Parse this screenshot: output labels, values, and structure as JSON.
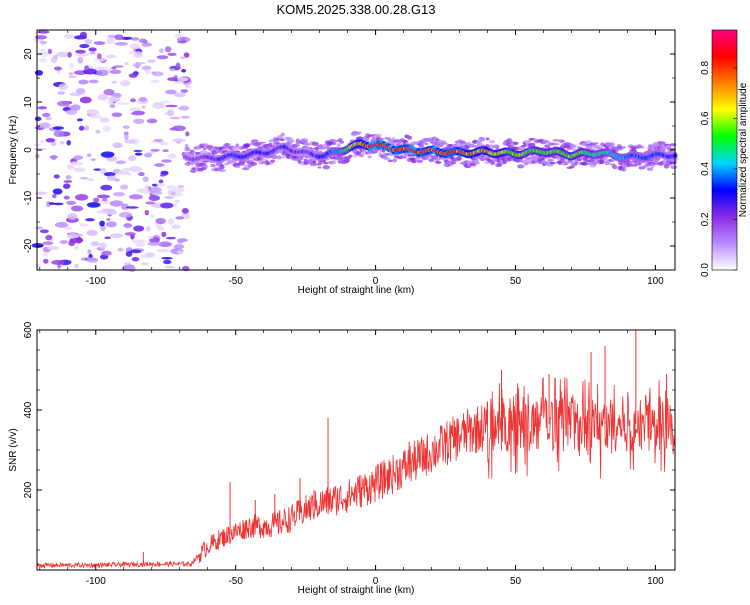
{
  "chart_data": [
    {
      "type": "heatmap",
      "title": "KOM5.2025.338.00.28.G13",
      "xlabel": "Height of straight line (km)",
      "ylabel": "Frequency (Hz)",
      "xlim": [
        -121,
        107
      ],
      "ylim": [
        -25,
        25
      ],
      "xticks": [
        -100,
        -50,
        0,
        50,
        100
      ],
      "xtick_labels": [
        "-100",
        "-50",
        "0",
        "50",
        "100"
      ],
      "yticks": [
        -20,
        -10,
        0,
        10,
        20
      ],
      "ytick_labels": [
        "-20",
        "-10",
        "0",
        "10",
        "20"
      ],
      "colorbar": {
        "label": "Normalized spectral amplitude",
        "range": [
          0,
          0.95
        ],
        "ticks": [
          0.0,
          0.2,
          0.4,
          0.6,
          0.8
        ],
        "tick_labels": [
          "0.0",
          "0.2",
          "0.4",
          "0.6",
          "0.8"
        ],
        "colors": [
          "#ffffff",
          "#b98cff",
          "#8a2be2",
          "#0000ff",
          "#00d5ff",
          "#00ff00",
          "#ffff00",
          "#ff8000",
          "#ff0000",
          "#ff007f"
        ]
      },
      "noise_region_x": [
        -121,
        -67
      ],
      "ridge": {
        "x": [
          -68,
          -60,
          -50,
          -40,
          -32,
          -25,
          -18,
          -10,
          -5,
          0,
          10,
          20,
          30,
          40,
          50,
          60,
          70,
          80,
          90,
          100,
          107
        ],
        "y": [
          -1.5,
          -1.8,
          -1.3,
          -0.6,
          0.5,
          -0.7,
          -1.2,
          0.4,
          1.2,
          1.0,
          0.0,
          -0.3,
          -0.6,
          -0.4,
          -0.8,
          -0.2,
          -1.0,
          -0.6,
          -1.5,
          -1.2,
          -1.0
        ],
        "peak_amplitude": [
          0.2,
          0.25,
          0.35,
          0.3,
          0.3,
          0.25,
          0.35,
          0.55,
          0.8,
          0.95,
          0.85,
          0.9,
          0.8,
          0.75,
          0.6,
          0.55,
          0.6,
          0.5,
          0.4,
          0.35,
          0.3
        ]
      }
    },
    {
      "type": "line",
      "xlabel": "Height of straight line (km)",
      "ylabel": "SNR (v/v)",
      "xlim": [
        -121,
        107
      ],
      "ylim": [
        0,
        600
      ],
      "xticks": [
        -100,
        -50,
        0,
        50,
        100
      ],
      "xtick_labels": [
        "-100",
        "-50",
        "0",
        "50",
        "100"
      ],
      "yticks": [
        200,
        400,
        600
      ],
      "ytick_labels": [
        "200",
        "400",
        "600"
      ],
      "color": "#ee3333",
      "series": [
        {
          "name": "SNR",
          "x": [
            -121,
            -100,
            -80,
            -66,
            -60,
            -55,
            -50,
            -45,
            -40,
            -35,
            -30,
            -25,
            -20,
            -15,
            -10,
            -5,
            0,
            5,
            10,
            15,
            20,
            25,
            30,
            35,
            40,
            45,
            50,
            55,
            60,
            65,
            70,
            75,
            80,
            85,
            90,
            95,
            100,
            107
          ],
          "y": [
            12,
            12,
            15,
            15,
            60,
            80,
            95,
            110,
            110,
            115,
            130,
            150,
            165,
            175,
            185,
            200,
            215,
            235,
            255,
            275,
            295,
            315,
            335,
            350,
            360,
            365,
            365,
            365,
            365,
            365,
            365,
            365,
            365,
            365,
            365,
            365,
            365,
            365
          ],
          "spikes": [
            {
              "x": -83,
              "y": 45
            },
            {
              "x": -52,
              "y": 220
            },
            {
              "x": -43,
              "y": 175
            },
            {
              "x": -36,
              "y": 190
            },
            {
              "x": -27,
              "y": 230
            },
            {
              "x": -22,
              "y": 200
            },
            {
              "x": -17,
              "y": 380
            },
            {
              "x": 12,
              "y": 320
            },
            {
              "x": 40,
              "y": 420
            },
            {
              "x": 45,
              "y": 500
            },
            {
              "x": 62,
              "y": 490
            },
            {
              "x": 77,
              "y": 545
            },
            {
              "x": 82,
              "y": 560
            },
            {
              "x": 93,
              "y": 600
            },
            {
              "x": 104,
              "y": 490
            }
          ]
        }
      ]
    }
  ]
}
